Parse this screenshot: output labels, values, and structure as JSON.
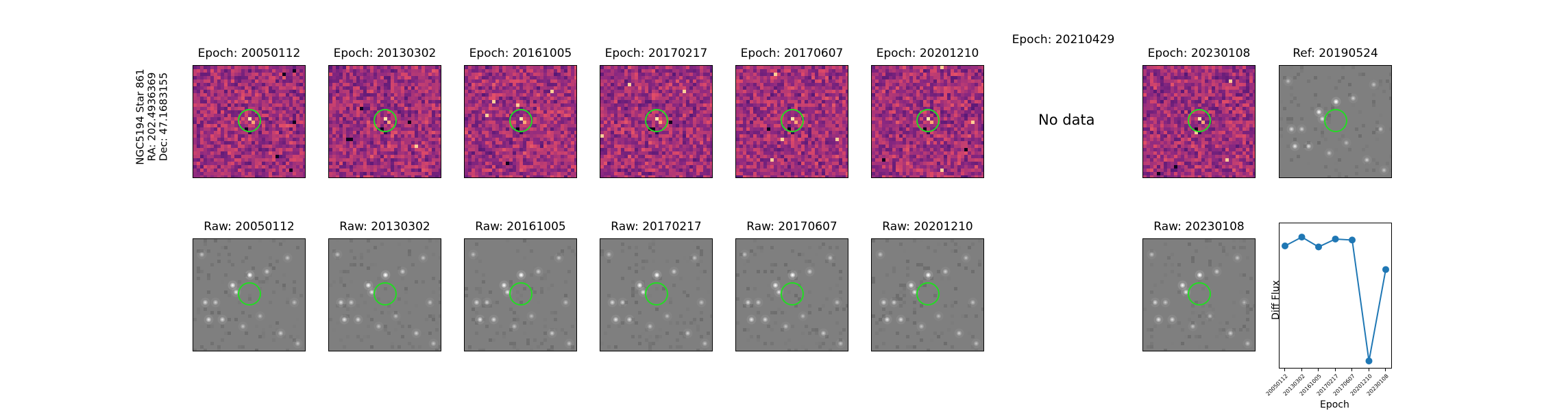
{
  "figure": {
    "target_label_lines": [
      "NGC5194 Star 861",
      "RA: 202.4936369",
      "Dec: 47.1683155"
    ]
  },
  "diff_row": [
    {
      "title": "Epoch: 20050112",
      "state": "image"
    },
    {
      "title": "Epoch: 20130302",
      "state": "image"
    },
    {
      "title": "Epoch: 20161005",
      "state": "image"
    },
    {
      "title": "Epoch: 20170217",
      "state": "image"
    },
    {
      "title": "Epoch: 20170607",
      "state": "image"
    },
    {
      "title": "Epoch: 20201210",
      "state": "image"
    },
    {
      "title": "Epoch: 20210429",
      "state": "nodata",
      "nodata_text": "No data"
    },
    {
      "title": "Epoch: 20230108",
      "state": "image"
    },
    {
      "title": "Ref: 20190524",
      "state": "reference"
    }
  ],
  "raw_row": [
    {
      "title": "Raw: 20050112"
    },
    {
      "title": "Raw: 20130302"
    },
    {
      "title": "Raw: 20161005"
    },
    {
      "title": "Raw: 20170217"
    },
    {
      "title": "Raw: 20170607"
    },
    {
      "title": "Raw: 20201210"
    },
    {
      "title": "Raw: 20230108"
    }
  ],
  "colors": {
    "diff_colormap": "magma",
    "raw_background": "#7f7f7f",
    "marker_circle": "#22dd22",
    "line": "#1f77b4"
  },
  "chart_data": {
    "type": "line",
    "xlabel": "Epoch",
    "ylabel": "Diff Flux",
    "categories": [
      "20050112",
      "20130302",
      "20161005",
      "20170217",
      "20170607",
      "20201210",
      "20230108"
    ],
    "values": [
      0.82,
      0.91,
      0.81,
      0.89,
      0.88,
      -0.35,
      0.58
    ],
    "ylim": [
      -0.42,
      1.05
    ],
    "yticks": [],
    "marker": "circle",
    "grid": false
  }
}
